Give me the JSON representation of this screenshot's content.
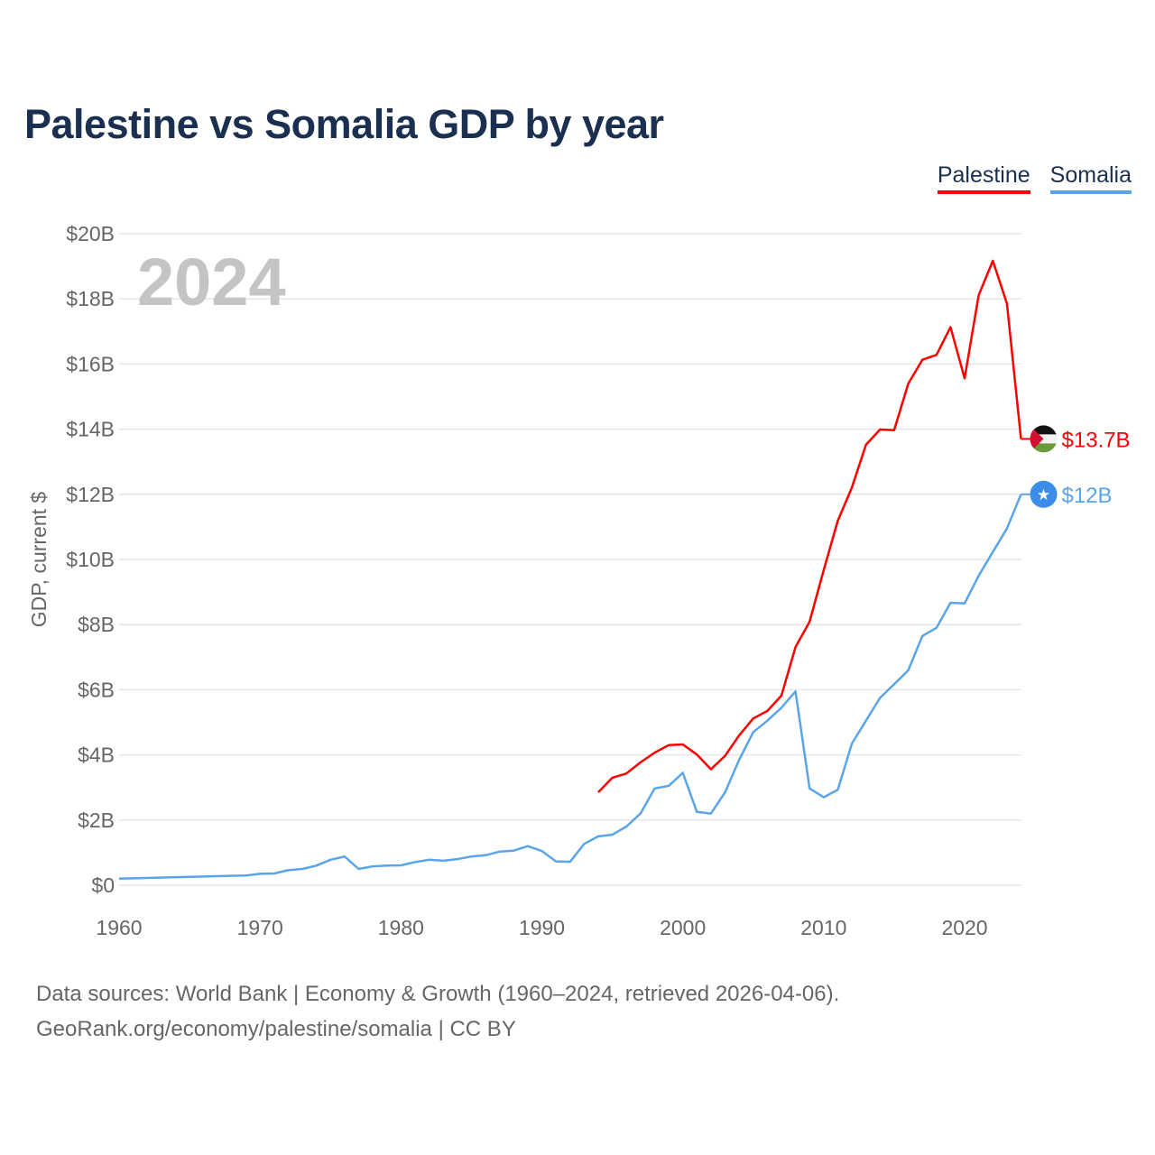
{
  "chart_data": {
    "type": "line",
    "title": "Palestine vs Somalia GDP by year",
    "ylabel": "GDP, current $",
    "xlabel": "",
    "year_label": "2024",
    "xlim": [
      1960,
      2024
    ],
    "ylim": [
      0,
      20
    ],
    "grid": true,
    "legend_placement": "top-right",
    "x_ticks": [
      "1960",
      "1970",
      "1980",
      "1990",
      "2000",
      "2010",
      "2020"
    ],
    "y_ticks": [
      "$0",
      "$2B",
      "$4B",
      "$6B",
      "$8B",
      "$10B",
      "$12B",
      "$14B",
      "$16B",
      "$18B",
      "$20B"
    ],
    "series": [
      {
        "name": "Palestine",
        "color": "#ff0000",
        "end_label": "$13.7B",
        "flag": "palestine-flag",
        "x": [
          1994,
          1995,
          1996,
          1997,
          1998,
          1999,
          2000,
          2001,
          2002,
          2003,
          2004,
          2005,
          2006,
          2007,
          2008,
          2009,
          2010,
          2011,
          2012,
          2013,
          2014,
          2015,
          2016,
          2017,
          2018,
          2019,
          2020,
          2021,
          2022,
          2023,
          2024
        ],
        "values": [
          2.85,
          3.3,
          3.43,
          3.77,
          4.07,
          4.3,
          4.32,
          4.01,
          3.56,
          3.97,
          4.6,
          5.12,
          5.35,
          5.82,
          7.31,
          8.09,
          9.68,
          11.19,
          12.21,
          13.52,
          13.99,
          13.97,
          15.4,
          16.13,
          16.28,
          17.13,
          15.56,
          18.11,
          19.17,
          17.86,
          13.7
        ]
      },
      {
        "name": "Somalia",
        "color": "#5aa5ea",
        "end_label": "$12B",
        "flag": "somalia-flag",
        "x": [
          1960,
          1969,
          1970,
          1971,
          1972,
          1973,
          1974,
          1975,
          1976,
          1977,
          1978,
          1979,
          1980,
          1981,
          1982,
          1983,
          1984,
          1985,
          1986,
          1987,
          1988,
          1989,
          1990,
          1991,
          1992,
          1993,
          1994,
          1995,
          1996,
          1997,
          1998,
          1999,
          2000,
          2001,
          2002,
          2003,
          2004,
          2005,
          2006,
          2007,
          2008,
          2009,
          2010,
          2011,
          2012,
          2013,
          2014,
          2015,
          2016,
          2017,
          2018,
          2019,
          2020,
          2021,
          2022,
          2023,
          2024
        ],
        "values": [
          0.2,
          0.3,
          0.35,
          0.36,
          0.46,
          0.5,
          0.6,
          0.78,
          0.88,
          0.5,
          0.58,
          0.6,
          0.61,
          0.71,
          0.78,
          0.75,
          0.8,
          0.88,
          0.92,
          1.03,
          1.06,
          1.2,
          1.05,
          0.73,
          0.72,
          1.27,
          1.5,
          1.55,
          1.8,
          2.2,
          2.97,
          3.05,
          3.45,
          2.25,
          2.2,
          2.85,
          3.85,
          4.7,
          5.05,
          5.45,
          5.95,
          2.97,
          2.7,
          2.93,
          4.35,
          5.05,
          5.75,
          6.17,
          6.6,
          7.65,
          7.9,
          8.67,
          8.65,
          9.5,
          10.23,
          10.95,
          12.0
        ]
      }
    ]
  },
  "footer": {
    "line1": "Data sources: World Bank | Economy & Growth (1960–2024, retrieved 2026-04-06).",
    "line2": "GeoRank.org/economy/palestine/somalia | CC BY"
  }
}
